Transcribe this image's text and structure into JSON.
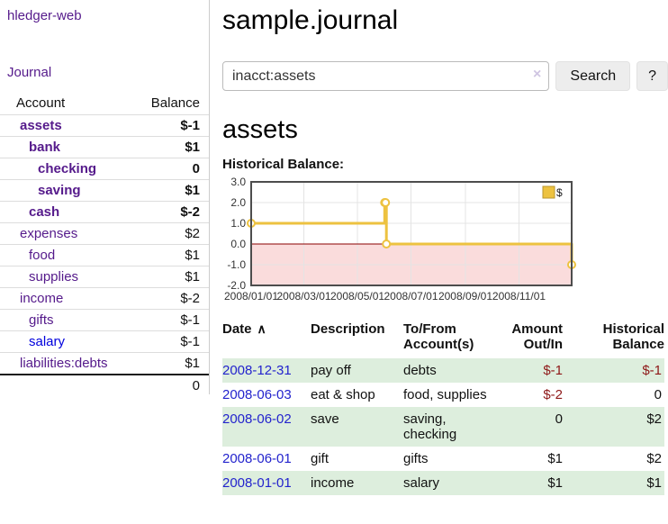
{
  "app": {
    "title": "hledger-web"
  },
  "sidebar": {
    "journal_link": "Journal",
    "accounts_table": {
      "headers": [
        "Account",
        "Balance"
      ],
      "rows": [
        {
          "name": "assets",
          "balance": "$-1",
          "indent": 1,
          "bold": true,
          "negative": true
        },
        {
          "name": "bank",
          "balance": "$1",
          "indent": 2,
          "bold": true,
          "negative": false
        },
        {
          "name": "checking",
          "balance": "0",
          "indent": 3,
          "bold": true,
          "negative": false
        },
        {
          "name": "saving",
          "balance": "$1",
          "indent": 3,
          "bold": true,
          "negative": false
        },
        {
          "name": "cash",
          "balance": "$-2",
          "indent": 2,
          "bold": true,
          "negative": true
        },
        {
          "name": "expenses",
          "balance": "$2",
          "indent": 1,
          "bold": false,
          "negative": false
        },
        {
          "name": "food",
          "balance": "$1",
          "indent": 2,
          "bold": false,
          "negative": false
        },
        {
          "name": "supplies",
          "balance": "$1",
          "indent": 2,
          "bold": false,
          "negative": false
        },
        {
          "name": "income",
          "balance": "$-2",
          "indent": 1,
          "bold": false,
          "negative": true
        },
        {
          "name": "gifts",
          "balance": "$-1",
          "indent": 2,
          "bold": false,
          "negative": true
        },
        {
          "name": "salary",
          "balance": "$-1",
          "indent": 2,
          "bold": false,
          "negative": true,
          "unvisited": true
        },
        {
          "name": "liabilities:debts",
          "balance": "$1",
          "indent": 1,
          "bold": false,
          "negative": false
        }
      ],
      "total": "0"
    }
  },
  "main": {
    "title": "sample.journal",
    "search": {
      "value": "inacct:assets",
      "clear_icon": "×",
      "button_label": "Search",
      "help_label": "?"
    },
    "account_heading": "assets"
  },
  "chart_data": {
    "type": "line",
    "style": "step",
    "title": "Historical Balance:",
    "series": [
      {
        "name": "$",
        "color": "#edc240",
        "points": [
          {
            "x": "2008-01-01",
            "y": 1
          },
          {
            "x": "2008-06-01",
            "y": 2
          },
          {
            "x": "2008-06-02",
            "y": 2
          },
          {
            "x": "2008-06-03",
            "y": 0
          },
          {
            "x": "2008-12-31",
            "y": -1
          }
        ]
      }
    ],
    "x_range": [
      "2008-01-01",
      "2008-12-31"
    ],
    "ylim": [
      -2,
      3
    ],
    "yticks": [
      "3.0",
      "2.0",
      "1.0",
      "0.0",
      "-1.0",
      "-2.0"
    ],
    "xticks": [
      "2008/01/01",
      "2008/03/01",
      "2008/05/01",
      "2008/07/01",
      "2008/09/01",
      "2008/11/01"
    ],
    "legend": [
      "$"
    ],
    "legend_position": "top-right",
    "grid": true,
    "negative_region_color": "#fadcdc",
    "zero_line_color": "#8b0000"
  },
  "register": {
    "sort_icon": "∧",
    "headers": [
      {
        "lines": [
          "Date"
        ],
        "align": "left",
        "sortable": true
      },
      {
        "lines": [
          "Description"
        ],
        "align": "left",
        "sortable": false
      },
      {
        "lines": [
          "To/From",
          "Account(s)"
        ],
        "align": "left",
        "sortable": false
      },
      {
        "lines": [
          "Amount",
          "Out/In"
        ],
        "align": "right",
        "sortable": false
      },
      {
        "lines": [
          "Historical",
          "Balance"
        ],
        "align": "right",
        "sortable": false
      }
    ],
    "rows": [
      {
        "date": "2008-12-31",
        "description": "pay off",
        "accounts": "debts",
        "amount": "$-1",
        "amount_negative": true,
        "balance": "$-1",
        "balance_negative": true
      },
      {
        "date": "2008-06-03",
        "description": "eat & shop",
        "accounts": "food, supplies",
        "amount": "$-2",
        "amount_negative": true,
        "balance": "0",
        "balance_negative": false
      },
      {
        "date": "2008-06-02",
        "description": "save",
        "accounts": "saving, checking",
        "amount": "0",
        "amount_negative": false,
        "balance": "$2",
        "balance_negative": false
      },
      {
        "date": "2008-06-01",
        "description": "gift",
        "accounts": "gifts",
        "amount": "$1",
        "amount_negative": false,
        "balance": "$2",
        "balance_negative": false
      },
      {
        "date": "2008-01-01",
        "description": "income",
        "accounts": "salary",
        "amount": "$1",
        "amount_negative": false,
        "balance": "$1",
        "balance_negative": false
      }
    ]
  }
}
